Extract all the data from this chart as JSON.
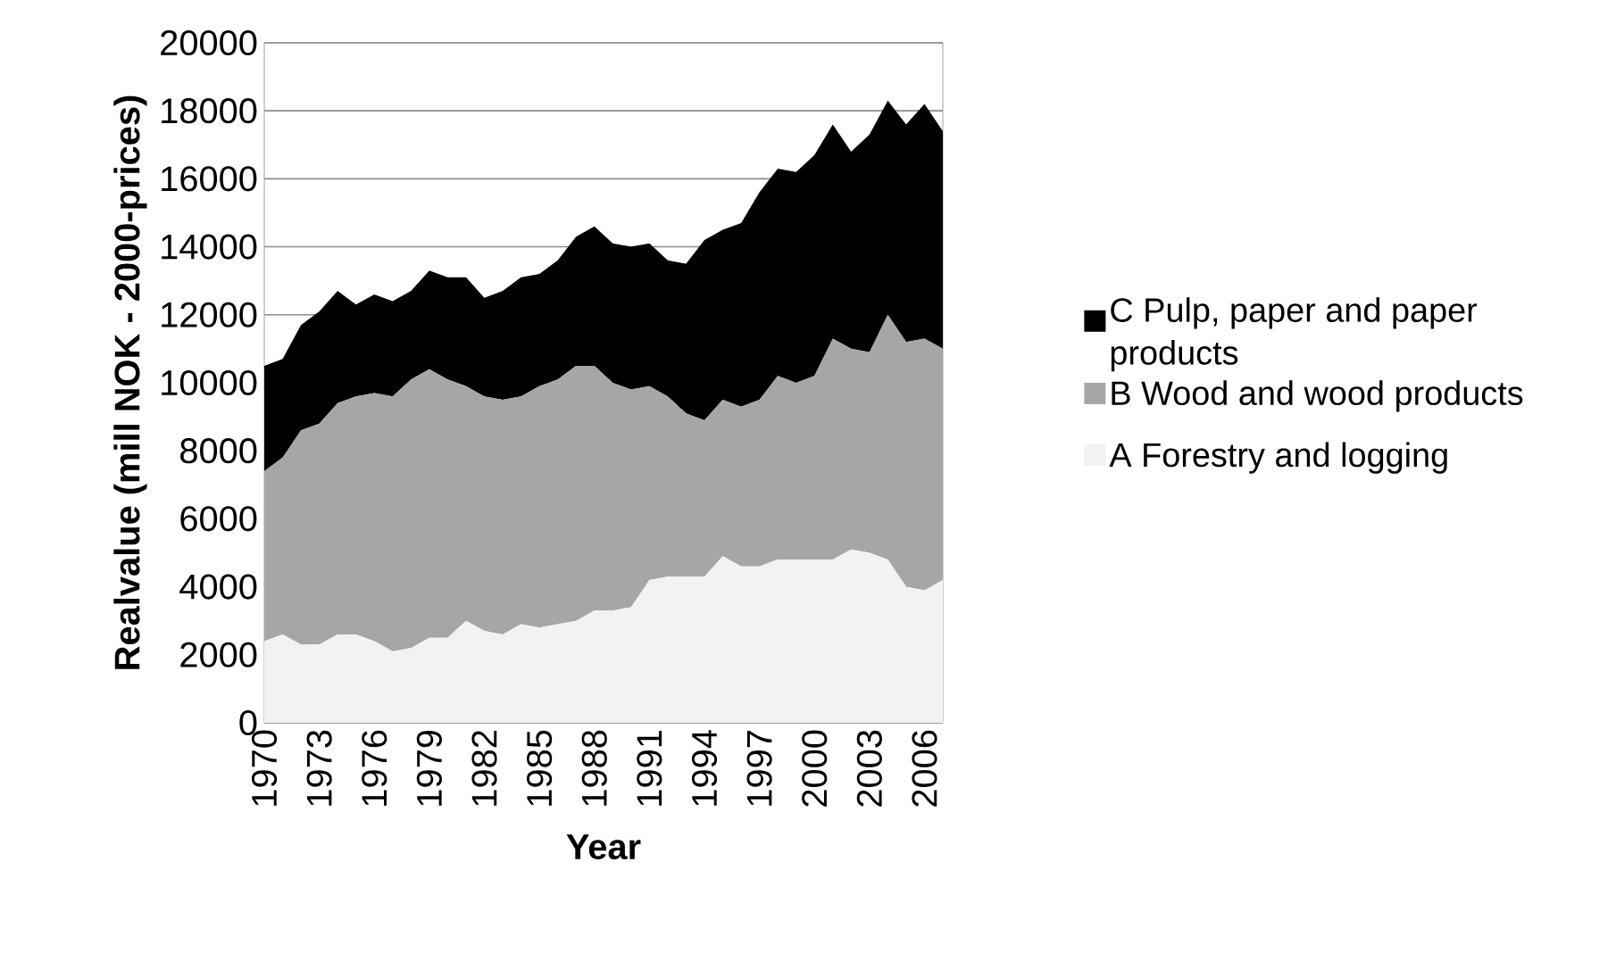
{
  "chart_data": {
    "type": "area",
    "stacked": true,
    "xlabel": "Year",
    "ylabel": "Realvalue (mill NOK - 2000-prices)",
    "categories": [
      "1970",
      null,
      null,
      "1973",
      null,
      null,
      "1976",
      null,
      null,
      "1979",
      null,
      null,
      "1982",
      null,
      null,
      "1985",
      null,
      null,
      "1988",
      null,
      null,
      "1991",
      null,
      null,
      "1994",
      null,
      null,
      "1997",
      null,
      null,
      "2000",
      null,
      null,
      "2003",
      null,
      null,
      "2006",
      null
    ],
    "series": [
      {
        "name": "A Forestry and logging",
        "color": "#f2f2f2",
        "values": [
          2400,
          2600,
          2300,
          2300,
          2600,
          2600,
          2400,
          2100,
          2200,
          2500,
          2500,
          3000,
          2700,
          2600,
          2900,
          2800,
          2900,
          3000,
          3300,
          3300,
          3400,
          4200,
          4300,
          4300,
          4300,
          4900,
          4600,
          4600,
          4800,
          4800,
          4800,
          4800,
          5100,
          5000,
          4800,
          4000,
          3900,
          4200
        ]
      },
      {
        "name": "B Wood and wood products",
        "color": "#a6a6a6",
        "values": [
          5000,
          5200,
          6300,
          6500,
          6800,
          7000,
          7300,
          7500,
          7900,
          7900,
          7600,
          6900,
          6900,
          6900,
          6700,
          7100,
          7200,
          7500,
          7200,
          6700,
          6400,
          5700,
          5300,
          4800,
          4600,
          4600,
          4700,
          4900,
          5400,
          5200,
          5400,
          6500,
          5900,
          5900,
          7200,
          7200,
          7400,
          6800
        ]
      },
      {
        "name": "C Pulp, paper and paper products",
        "color": "#000000",
        "values": [
          3100,
          2900,
          3100,
          3300,
          3300,
          2700,
          2900,
          2800,
          2600,
          2900,
          3000,
          3200,
          2900,
          3200,
          3500,
          3300,
          3500,
          3800,
          4100,
          4100,
          4200,
          4200,
          4000,
          4400,
          5300,
          5000,
          5400,
          6100,
          6100,
          6200,
          6500,
          6300,
          5800,
          6400,
          6300,
          6400,
          6900,
          6400
        ]
      }
    ],
    "ylim": [
      0,
      20000
    ],
    "yticks": [
      0,
      2000,
      4000,
      6000,
      8000,
      10000,
      12000,
      14000,
      16000,
      18000,
      20000
    ],
    "grid": "y",
    "legend": "right"
  }
}
